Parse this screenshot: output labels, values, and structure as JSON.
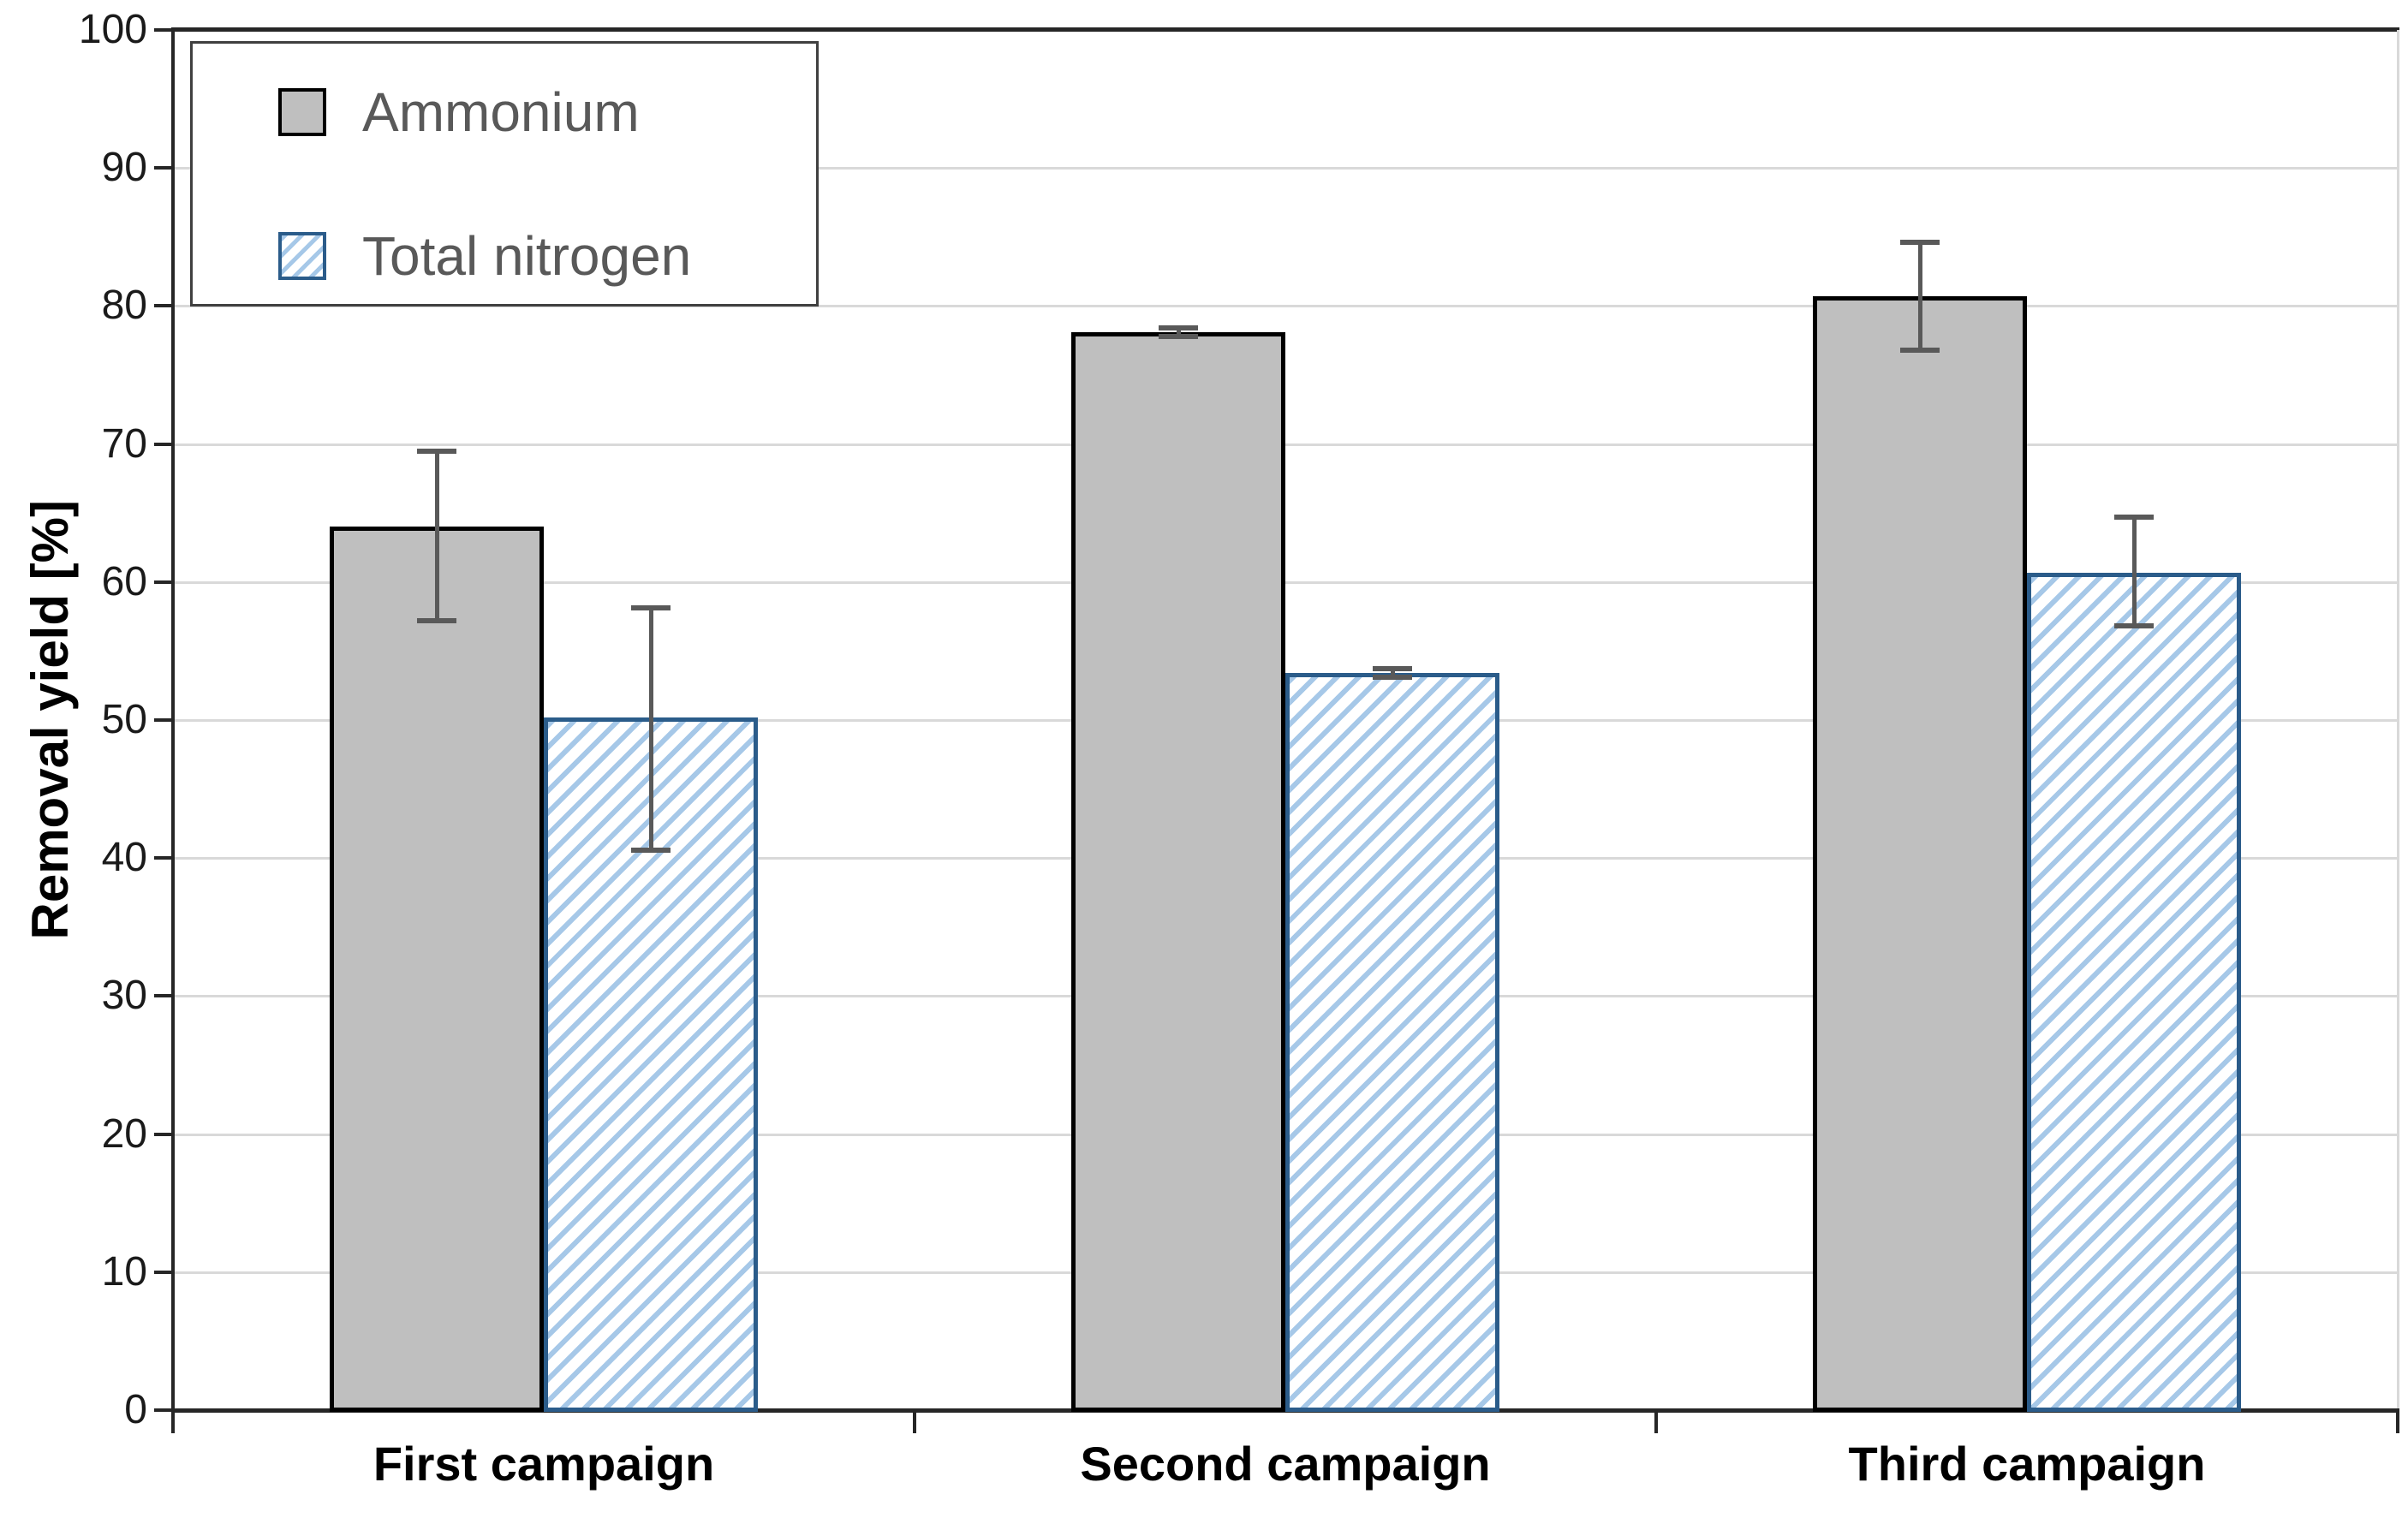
{
  "chart_data": {
    "type": "bar",
    "title": "",
    "xlabel": "",
    "ylabel": "Removal yield [%]",
    "categories": [
      "First campaign",
      "Second campaign",
      "Third campaign"
    ],
    "series": [
      {
        "name": "Ammonium",
        "style": "solid-gray",
        "values": [
          64.0,
          78.1,
          80.7
        ],
        "error_top": [
          69.5,
          78.4,
          84.6
        ],
        "error_bottom": [
          57.2,
          77.8,
          76.8
        ]
      },
      {
        "name": "Total nitrogen",
        "style": "blue-hatched",
        "values": [
          50.2,
          53.4,
          60.7
        ],
        "error_top": [
          58.1,
          53.7,
          64.7
        ],
        "error_bottom": [
          40.6,
          53.1,
          56.8
        ]
      }
    ],
    "ylim": [
      0,
      100
    ],
    "yticks": [
      0,
      10,
      20,
      30,
      40,
      50,
      60,
      70,
      80,
      90,
      100
    ],
    "grid": "horizontal",
    "legend_position": "top-left"
  },
  "colors": {
    "ammonium_fill": "#BFBFBF",
    "ammonium_border": "#000000",
    "nitrogen_hatch": "#A6C8E8",
    "nitrogen_border": "#2B5C8A",
    "error_bar": "#595959",
    "gridline": "#D9D9D9",
    "axis": "#262626",
    "legend_text": "#595959",
    "legend_border": "#404040",
    "label_text": "#000000"
  }
}
